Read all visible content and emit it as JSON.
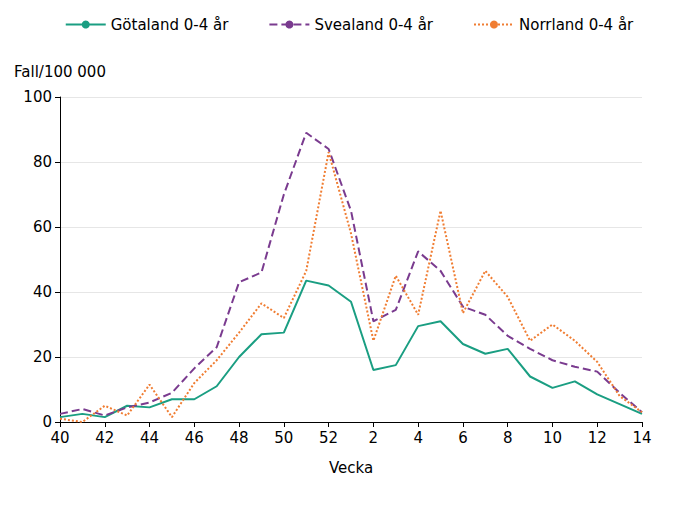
{
  "chart_data": {
    "type": "line",
    "x_label": "Vecka",
    "y_label": "Fall/100 000",
    "categories": [
      "40",
      null,
      "42",
      null,
      "44",
      null,
      "46",
      null,
      "48",
      null,
      "50",
      null,
      "52",
      null,
      "2",
      null,
      "4",
      null,
      "6",
      null,
      "8",
      null,
      "10",
      null,
      "12",
      null,
      "14"
    ],
    "series": [
      {
        "name": "Götaland 0-4 år",
        "color": "#1a9e82",
        "line_style": "solid",
        "values": [
          1.5,
          2.5,
          1.5,
          5,
          4.5,
          7,
          7,
          11,
          20,
          27,
          27.5,
          43.5,
          42,
          37,
          16,
          17.5,
          29.5,
          31,
          24,
          21,
          22.5,
          14,
          10.5,
          12.5,
          8.5,
          5.5,
          2.5
        ]
      },
      {
        "name": "Svealand 0-4 år",
        "color": "#7a3b8f",
        "line_style": "dashed",
        "values": [
          2.5,
          4,
          2,
          4.5,
          6,
          9,
          16.5,
          23,
          43,
          46,
          70,
          89,
          84,
          65,
          31,
          34.5,
          52.5,
          46.5,
          35.5,
          33,
          26.5,
          22.5,
          19,
          17,
          15.5,
          9,
          3
        ]
      },
      {
        "name": "Norrland 0-4 år",
        "color": "#f07d32",
        "line_style": "dotted",
        "values": [
          1,
          0,
          5,
          2,
          11.5,
          1.5,
          12,
          19,
          27.5,
          36.5,
          32,
          46.5,
          83,
          58,
          25,
          45,
          33,
          65,
          33.5,
          46.5,
          38.5,
          25,
          30,
          25,
          18.5,
          8,
          3
        ]
      }
    ],
    "ylim": [
      0,
      100
    ],
    "yticks": [
      0,
      20,
      40,
      60,
      80,
      100
    ],
    "grid": true,
    "legend": "top"
  }
}
